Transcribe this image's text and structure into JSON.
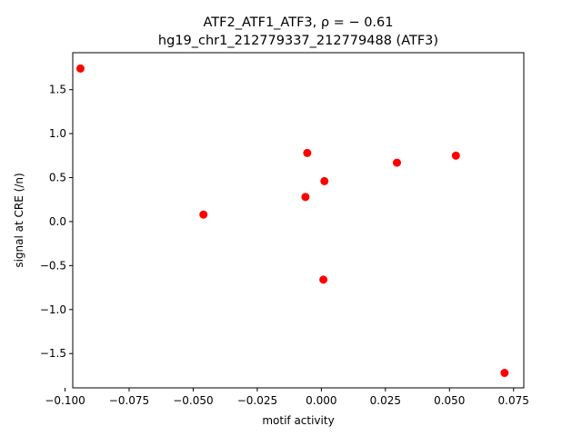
{
  "chart_data": {
    "type": "scatter",
    "title_line1": "ATF2_ATF1_ATF3, ρ = − 0.61",
    "title_line2": "hg19_chr1_212779337_212779488 (ATF3)",
    "xlabel": "motif activity",
    "ylabel": "signal at CRE (/n)",
    "xlim": [
      -0.097,
      0.079
    ],
    "ylim": [
      -1.89,
      1.92
    ],
    "xticks": [
      -0.1,
      -0.075,
      -0.05,
      -0.025,
      0.0,
      0.025,
      0.05,
      0.075
    ],
    "xtick_labels": [
      "−0.100",
      "−0.075",
      "−0.050",
      "−0.025",
      "0.000",
      "0.025",
      "0.050",
      "0.075"
    ],
    "yticks": [
      -1.5,
      -1.0,
      -0.5,
      0.0,
      0.5,
      1.0,
      1.5
    ],
    "ytick_labels": [
      "−1.5",
      "−1.0",
      "−0.5",
      "0.0",
      "0.5",
      "1.0",
      "1.5"
    ],
    "grid": false,
    "marker_color": "#ff0000",
    "points": [
      {
        "x": -0.094,
        "y": 1.74
      },
      {
        "x": -0.046,
        "y": 0.08
      },
      {
        "x": -0.0055,
        "y": 0.78
      },
      {
        "x": -0.0062,
        "y": 0.28
      },
      {
        "x": 0.0012,
        "y": 0.46
      },
      {
        "x": 0.0008,
        "y": -0.66
      },
      {
        "x": 0.0295,
        "y": 0.67
      },
      {
        "x": 0.0525,
        "y": 0.75
      },
      {
        "x": 0.0715,
        "y": -1.72
      }
    ]
  }
}
